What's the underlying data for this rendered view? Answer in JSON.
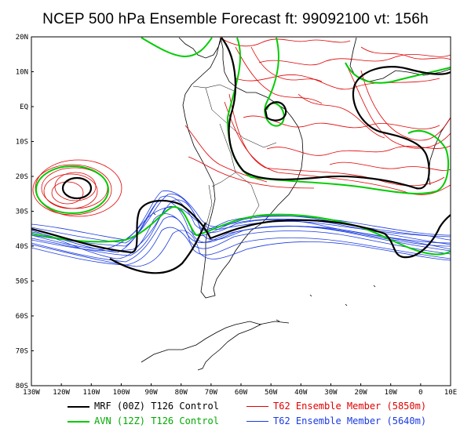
{
  "title": "NCEP 500 hPa Ensemble Forecast  ft: 99092100 vt: 156h",
  "lat_labels": [
    "20N",
    "10N",
    "EQ",
    "10S",
    "20S",
    "30S",
    "40S",
    "50S",
    "60S",
    "70S",
    "80S"
  ],
  "lon_labels": [
    "130W",
    "120W",
    "110W",
    "100W",
    "90W",
    "80W",
    "70W",
    "60W",
    "50W",
    "40W",
    "30W",
    "20W",
    "10W",
    "0",
    "10E"
  ],
  "colors": {
    "mrf": "#000000",
    "avn": "#00cc00",
    "red": "#e00000",
    "blue": "#1a3ae0",
    "coast": "#000000"
  },
  "legend": [
    {
      "label": "MRF (00Z) T126 Control",
      "color_key": "mrf"
    },
    {
      "label": "AVN (12Z) T126 Control",
      "color_key": "avn"
    },
    {
      "label": "T62 Ensemble Member (5850m)",
      "color_key": "red"
    },
    {
      "label": "T62 Ensemble Member (5640m)",
      "color_key": "blue"
    }
  ]
}
